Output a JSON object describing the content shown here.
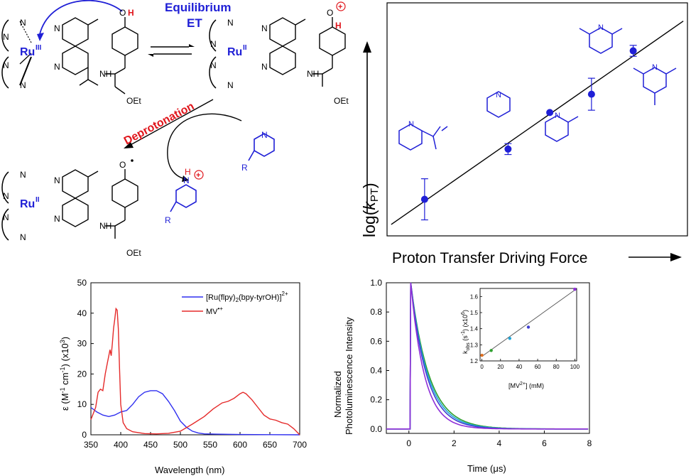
{
  "scheme": {
    "equilibrium_label_1": "Equilibrium",
    "equilibrium_label_2": "ET",
    "deprotonation_label": "Deprotonation",
    "ru3_label": "Ru",
    "ru3_ox": "III",
    "ru2_label": "Ru",
    "ru2_ox": "II",
    "N": "N",
    "H": "H",
    "O": "O",
    "OEt": "OEt",
    "NH": "NH",
    "R": "R",
    "plus": "+"
  },
  "correlation": {
    "ylabel_prefix": "log(",
    "ylabel_k": "k",
    "ylabel_sub": "PT",
    "ylabel_suffix": ")",
    "xlabel": "Proton Transfer Driving Force",
    "colors": {
      "marker": "#1f1fd6",
      "line": "#000000"
    }
  },
  "chart_data": [
    {
      "type": "scatter",
      "title": "",
      "xlabel": "Proton Transfer Driving Force",
      "ylabel": "log(kPT)",
      "series": [
        {
          "points": [
            {
              "x": 1,
              "y": 1,
              "err": 0.45
            },
            {
              "x": 2,
              "y": 2.1,
              "err": 0.12
            },
            {
              "x": 2.5,
              "y": 2.9,
              "err": 0
            },
            {
              "x": 3,
              "y": 3.3,
              "err": 0.35
            },
            {
              "x": 3.5,
              "y": 4.25,
              "err": 0.12
            }
          ]
        }
      ],
      "fit": {
        "x": [
          0.6,
          4.1
        ],
        "y": [
          0.45,
          4.9
        ]
      }
    },
    {
      "type": "line",
      "xlabel": "Wavelength (nm)",
      "ylabel_main": "ε (M",
      "ylabel_sup1": "-1",
      "ylabel_mid": " cm",
      "ylabel_sup2": "-1",
      "ylabel_end": ") (x10",
      "ylabel_sup3": "3",
      "ylabel_close": ")",
      "xlim": [
        350,
        700
      ],
      "ylim": [
        0,
        50
      ],
      "xticks": [
        "350",
        "400",
        "450",
        "500",
        "550",
        "600",
        "650",
        "700"
      ],
      "yticks": [
        "0",
        "10",
        "20",
        "30",
        "40",
        "50"
      ],
      "legend": [
        {
          "name": "[Ru(flpy)",
          "sub": "2",
          "name2": "(bpy-tyrOH)]",
          "sup": "2+",
          "color": "#2f2ff0"
        },
        {
          "name": "MV",
          "sup": "•+",
          "color": "#e52a2a"
        }
      ],
      "series": [
        {
          "name": "[Ru(flpy)2(bpy-tyrOH)]2+",
          "color": "#2f2ff0",
          "x": [
            350,
            360,
            370,
            380,
            390,
            400,
            410,
            420,
            430,
            440,
            450,
            460,
            470,
            480,
            490,
            500,
            510,
            520,
            530,
            540,
            560,
            600,
            650,
            700
          ],
          "y": [
            9,
            7.5,
            6.5,
            6,
            6.5,
            7.5,
            8,
            10,
            12.5,
            14,
            14.5,
            14.5,
            13.5,
            11,
            8,
            4.5,
            2.5,
            1.2,
            0.6,
            0.3,
            0.2,
            0.1,
            0.05,
            0
          ]
        },
        {
          "name": "MV•+",
          "color": "#e52a2a",
          "x": [
            350,
            358,
            362,
            366,
            370,
            374,
            378,
            382,
            384,
            386,
            388,
            390,
            392,
            394,
            396,
            398,
            400,
            404,
            410,
            420,
            440,
            460,
            480,
            500,
            520,
            540,
            555,
            570,
            580,
            590,
            600,
            605,
            610,
            620,
            630,
            640,
            650,
            660,
            670,
            680,
            690,
            700
          ],
          "y": [
            5,
            9,
            14,
            15,
            14.5,
            20,
            24,
            28,
            26,
            30,
            35,
            38,
            41.5,
            41,
            35,
            22,
            10,
            4,
            2,
            1,
            0.4,
            0.3,
            0.5,
            1.2,
            3.5,
            6,
            8.5,
            10.5,
            11,
            12,
            13.5,
            14,
            13.5,
            11.5,
            9,
            6.5,
            5.2,
            4.8,
            4,
            3.5,
            2,
            0
          ]
        }
      ]
    },
    {
      "type": "line",
      "xlabel": "Time (μs)",
      "ylabel_line1": "Normalized",
      "ylabel_line2": "Photoluminescence Intensity",
      "xlim": [
        -1,
        8
      ],
      "ylim": [
        0,
        1
      ],
      "xticks": [
        "0",
        "2",
        "4",
        "6",
        "8"
      ],
      "yticks": [
        "0.0",
        "0.2",
        "0.4",
        "0.6",
        "0.8",
        "1.0"
      ],
      "series": [
        {
          "color": "#2fa02f",
          "tau": 0.81
        },
        {
          "color": "#1fa5d8",
          "tau": 0.76
        },
        {
          "color": "#3f3fd0",
          "tau": 0.71
        },
        {
          "color": "#8f2fd8",
          "tau": 0.61
        }
      ],
      "inset": {
        "type": "scatter",
        "xlabel_pre": "[MV",
        "xlabel_sup": "2+",
        "xlabel_post": "] (mM)",
        "ylabel_pre": "k",
        "ylabel_sub": "obs",
        "ylabel_mid": " (s",
        "ylabel_sup1": "-1",
        "ylabel_mid2": ") (x10",
        "ylabel_sup2": "6",
        "ylabel_close": ")",
        "xlim": [
          0,
          100
        ],
        "ylim": [
          1.2,
          1.65
        ],
        "xticks": [
          "0",
          "20",
          "40",
          "60",
          "80",
          "100"
        ],
        "yticks": [
          "1.2",
          "1.3",
          "1.4",
          "1.5",
          "1.6"
        ],
        "points": [
          {
            "x": 0,
            "y": 1.235,
            "color": "#e07020"
          },
          {
            "x": 10,
            "y": 1.265,
            "color": "#2fa02f"
          },
          {
            "x": 30,
            "y": 1.34,
            "color": "#1fa5d8"
          },
          {
            "x": 50,
            "y": 1.41,
            "color": "#3f3fd0"
          },
          {
            "x": 100,
            "y": 1.645,
            "color": "#8f2fd8"
          }
        ],
        "fit": {
          "x": [
            0,
            100
          ],
          "y": [
            1.228,
            1.64
          ]
        }
      }
    }
  ]
}
